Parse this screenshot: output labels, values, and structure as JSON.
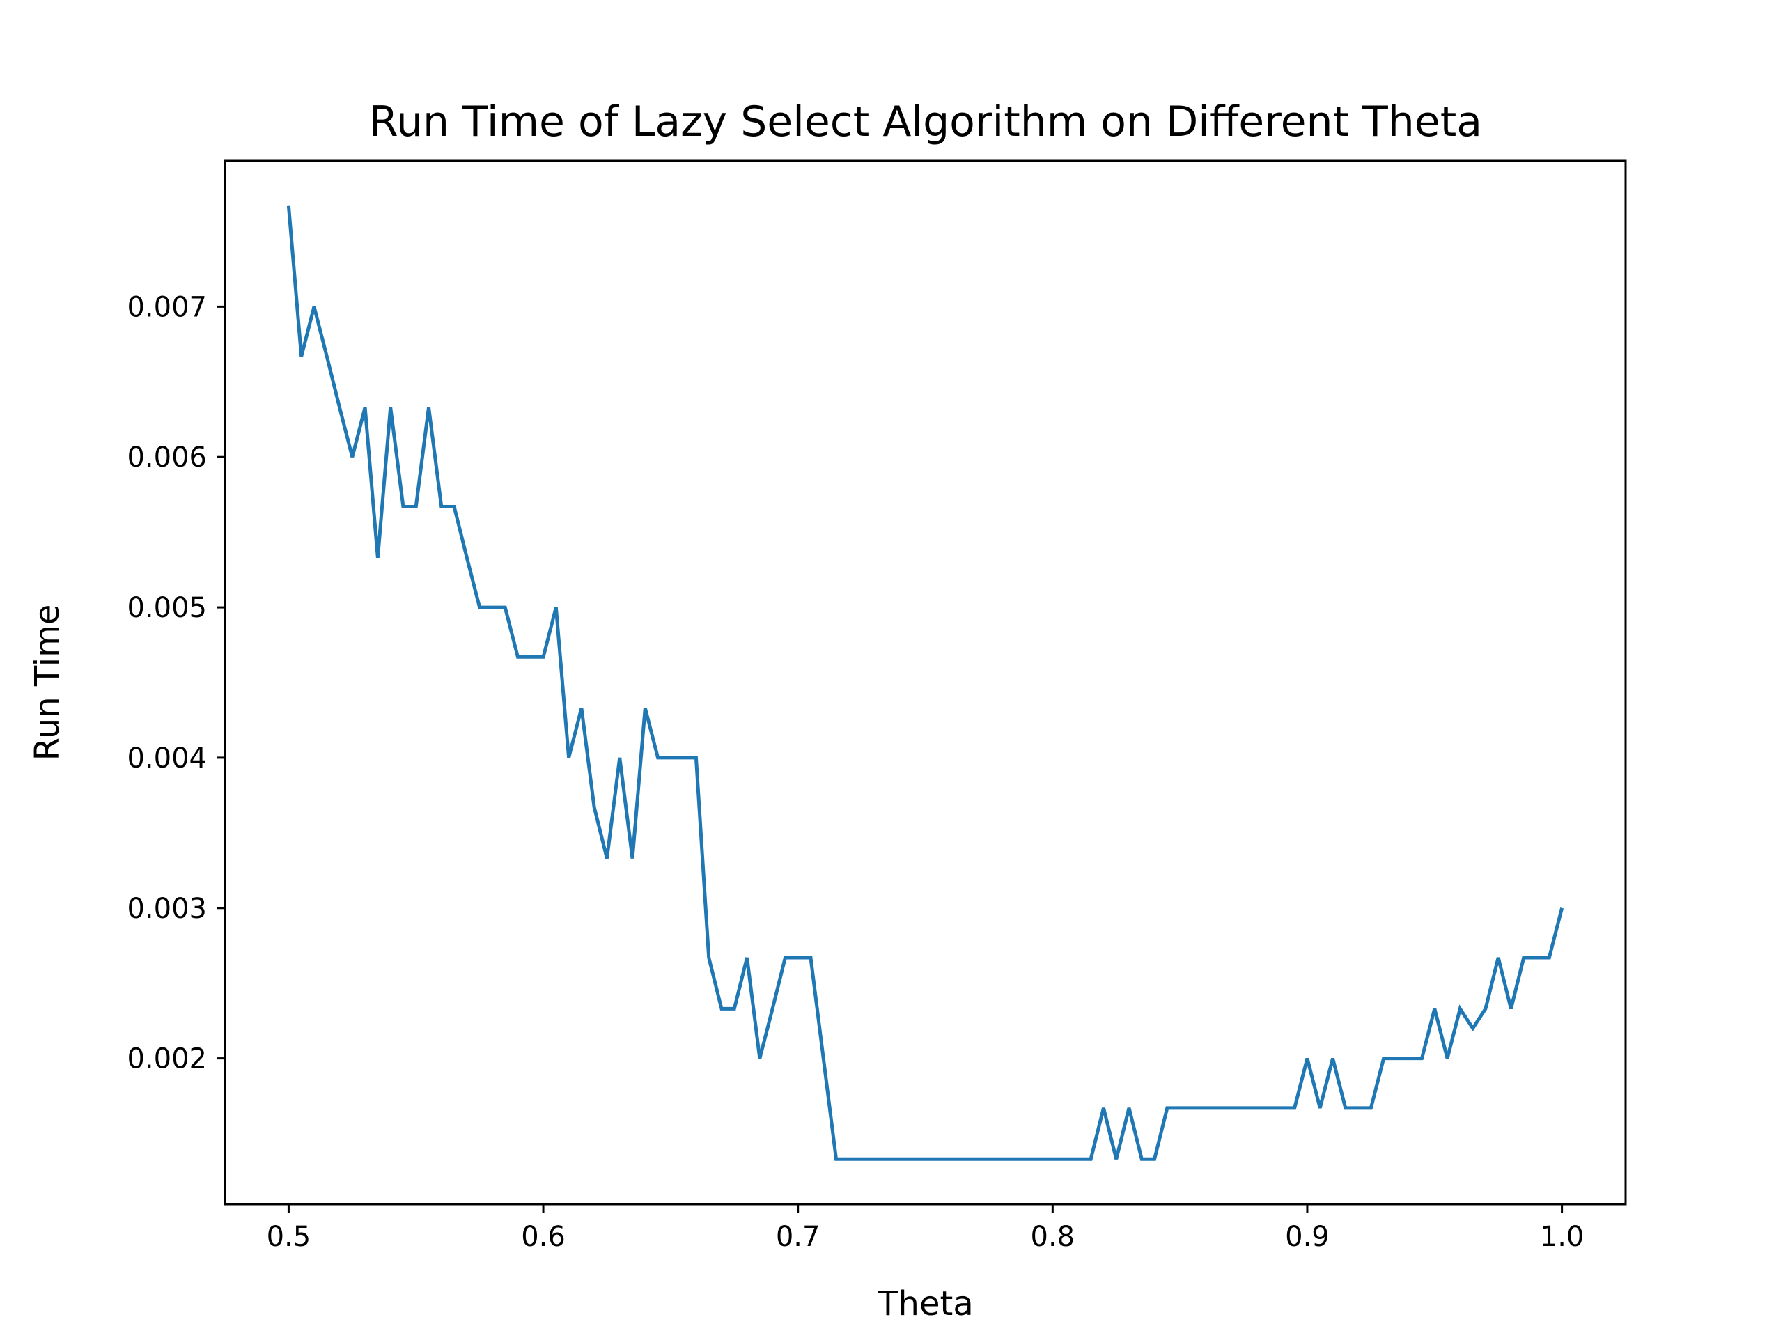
{
  "chart_data": {
    "type": "line",
    "title": "Run Time of Lazy Select Algorithm on Different Theta",
    "xlabel": "Theta",
    "ylabel": "Run Time",
    "xlim": [
      0.475,
      1.025
    ],
    "ylim": [
      0.00103,
      0.00797
    ],
    "xticks": [
      {
        "value": 0.5,
        "label": "0.5"
      },
      {
        "value": 0.6,
        "label": "0.6"
      },
      {
        "value": 0.7,
        "label": "0.7"
      },
      {
        "value": 0.8,
        "label": "0.8"
      },
      {
        "value": 0.9,
        "label": "0.9"
      },
      {
        "value": 1.0,
        "label": "1.0"
      }
    ],
    "yticks": [
      {
        "value": 0.002,
        "label": "0.002"
      },
      {
        "value": 0.003,
        "label": "0.003"
      },
      {
        "value": 0.004,
        "label": "0.004"
      },
      {
        "value": 0.005,
        "label": "0.005"
      },
      {
        "value": 0.006,
        "label": "0.006"
      },
      {
        "value": 0.007,
        "label": "0.007"
      }
    ],
    "grid": false,
    "legend": "none",
    "series": [
      {
        "color": "#1f77b4",
        "x": [
          0.5,
          0.505,
          0.51,
          0.515,
          0.52,
          0.525,
          0.53,
          0.535,
          0.54,
          0.545,
          0.55,
          0.555,
          0.56,
          0.565,
          0.57,
          0.575,
          0.58,
          0.585,
          0.59,
          0.595,
          0.6,
          0.605,
          0.61,
          0.615,
          0.62,
          0.625,
          0.63,
          0.635,
          0.64,
          0.645,
          0.65,
          0.655,
          0.66,
          0.665,
          0.67,
          0.675,
          0.68,
          0.685,
          0.69,
          0.695,
          0.7,
          0.705,
          0.71,
          0.715,
          0.72,
          0.725,
          0.73,
          0.735,
          0.74,
          0.745,
          0.75,
          0.755,
          0.76,
          0.765,
          0.77,
          0.775,
          0.78,
          0.785,
          0.79,
          0.795,
          0.8,
          0.805,
          0.81,
          0.815,
          0.82,
          0.825,
          0.83,
          0.835,
          0.84,
          0.845,
          0.85,
          0.855,
          0.86,
          0.865,
          0.87,
          0.875,
          0.88,
          0.885,
          0.89,
          0.895,
          0.9,
          0.905,
          0.91,
          0.915,
          0.92,
          0.925,
          0.93,
          0.935,
          0.94,
          0.945,
          0.95,
          0.955,
          0.96,
          0.965,
          0.97,
          0.975,
          0.98,
          0.985,
          0.99,
          0.995,
          1.0
        ],
        "y": [
          0.00767,
          0.00667,
          0.007,
          0.00667,
          0.00633,
          0.006,
          0.00633,
          0.00533,
          0.00633,
          0.00567,
          0.00567,
          0.00633,
          0.00567,
          0.00567,
          0.00533,
          0.005,
          0.005,
          0.005,
          0.00467,
          0.00467,
          0.00467,
          0.005,
          0.004,
          0.00433,
          0.00367,
          0.00333,
          0.004,
          0.00333,
          0.00433,
          0.004,
          0.004,
          0.004,
          0.004,
          0.00267,
          0.00233,
          0.00233,
          0.00267,
          0.002,
          0.00233,
          0.00267,
          0.00267,
          0.00267,
          0.002,
          0.00133,
          0.00133,
          0.00133,
          0.00133,
          0.00133,
          0.00133,
          0.00133,
          0.00133,
          0.00133,
          0.00133,
          0.00133,
          0.00133,
          0.00133,
          0.00133,
          0.00133,
          0.00133,
          0.00133,
          0.00133,
          0.00133,
          0.00133,
          0.00133,
          0.00167,
          0.00133,
          0.00167,
          0.00133,
          0.00133,
          0.00167,
          0.00167,
          0.00167,
          0.00167,
          0.00167,
          0.00167,
          0.00167,
          0.00167,
          0.00167,
          0.00167,
          0.00167,
          0.002,
          0.00167,
          0.002,
          0.00167,
          0.00167,
          0.00167,
          0.002,
          0.002,
          0.002,
          0.002,
          0.00233,
          0.002,
          0.00233,
          0.0022,
          0.00233,
          0.00267,
          0.00233,
          0.00267,
          0.00267,
          0.00267,
          0.003
        ]
      }
    ]
  }
}
